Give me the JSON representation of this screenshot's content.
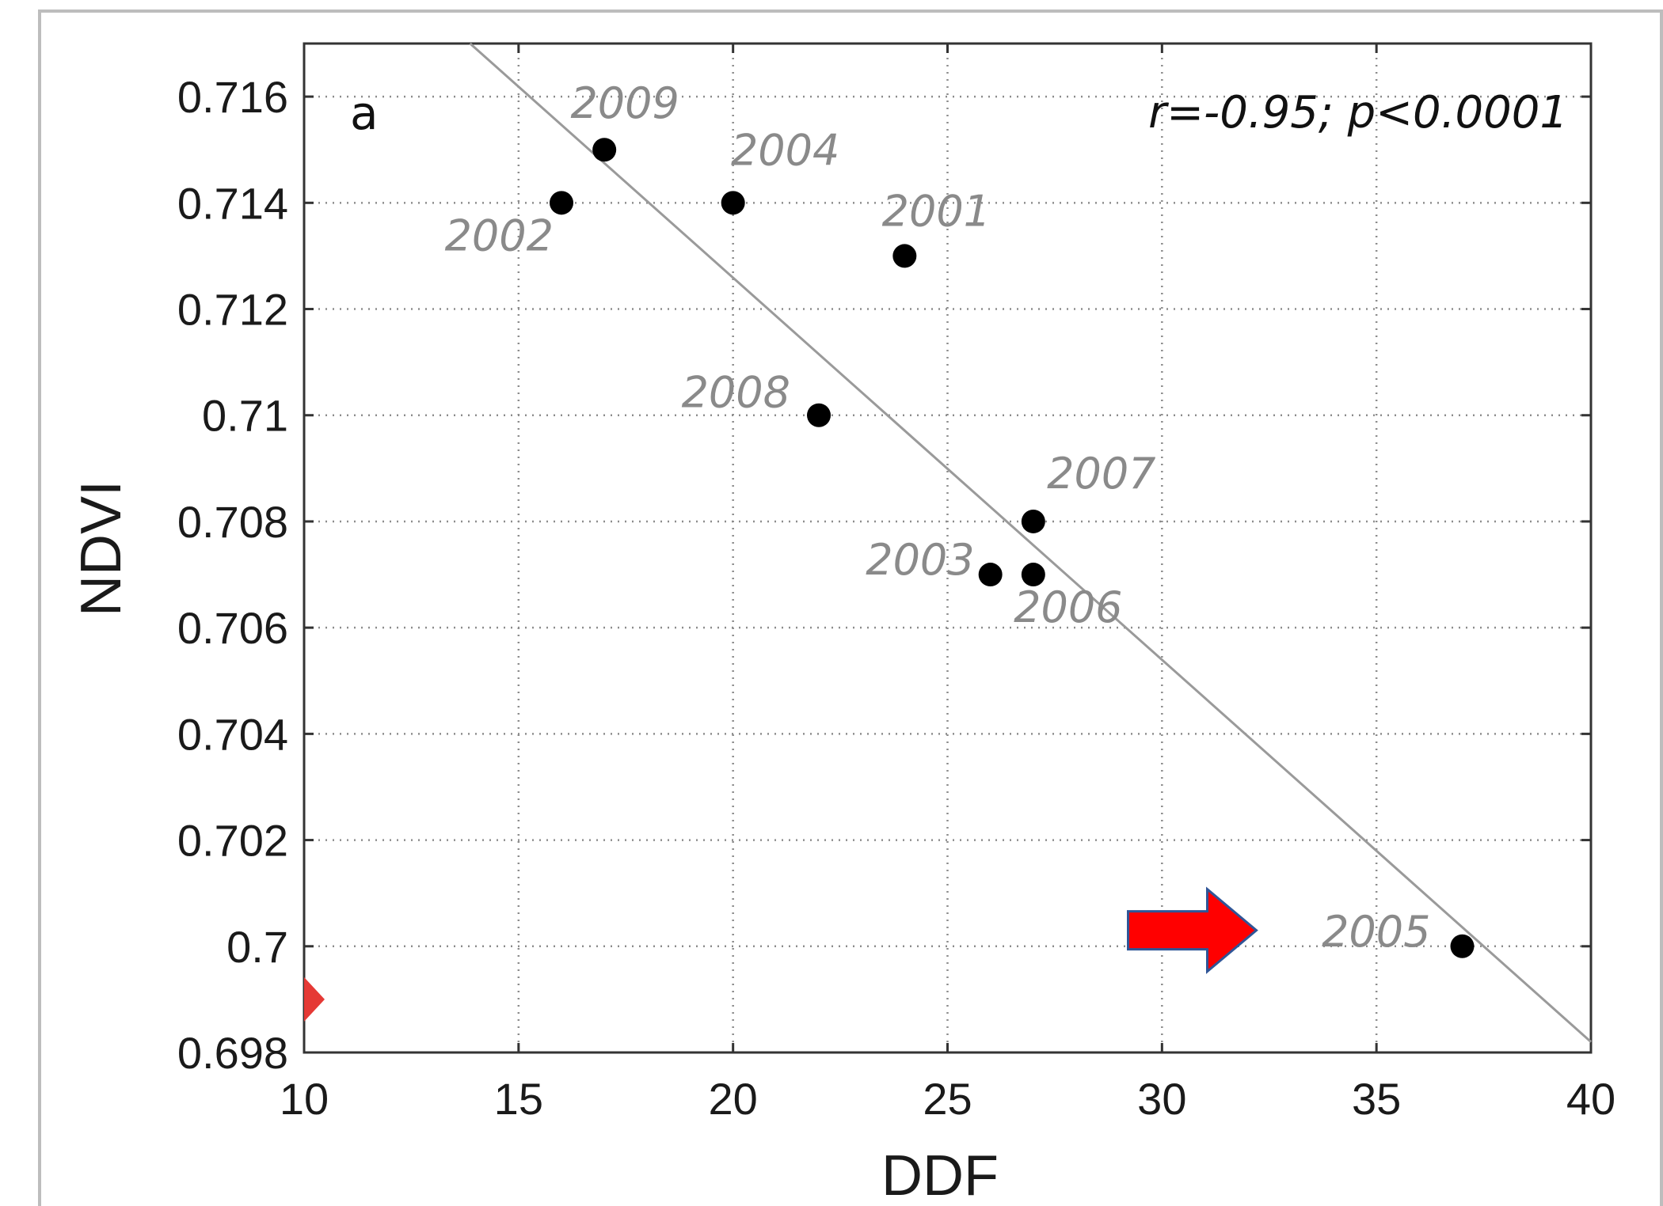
{
  "chart_data": {
    "type": "scatter",
    "panel_label": "a",
    "annotation": "r=-0.95; p<0.0001",
    "xlabel": "DDF",
    "ylabel": "NDVI",
    "xlim": [
      10,
      40
    ],
    "ylim": [
      0.698,
      0.717
    ],
    "xticks": [
      10,
      15,
      20,
      25,
      30,
      35,
      40
    ],
    "xtick_labels": [
      "10",
      "15",
      "20",
      "25",
      "30",
      "35",
      "40"
    ],
    "yticks": [
      0.698,
      0.7,
      0.702,
      0.704,
      0.706,
      0.708,
      0.71,
      0.712,
      0.714,
      0.716
    ],
    "ytick_labels": [
      "0.698",
      "0.7",
      "0.702",
      "0.704",
      "0.706",
      "0.708",
      "0.71",
      "0.712",
      "0.714",
      "0.716"
    ],
    "grid": true,
    "points": [
      {
        "label": "2009",
        "x": 17,
        "y": 0.715
      },
      {
        "label": "2002",
        "x": 16,
        "y": 0.714
      },
      {
        "label": "2004",
        "x": 20,
        "y": 0.714
      },
      {
        "label": "2001",
        "x": 24,
        "y": 0.713
      },
      {
        "label": "2008",
        "x": 22,
        "y": 0.71
      },
      {
        "label": "2007",
        "x": 27,
        "y": 0.708
      },
      {
        "label": "2003",
        "x": 26,
        "y": 0.707
      },
      {
        "label": "2006",
        "x": 27,
        "y": 0.707
      },
      {
        "label": "2005",
        "x": 37,
        "y": 0.7
      }
    ],
    "regression_line": {
      "x": [
        13.87,
        40
      ],
      "y": [
        0.717,
        0.6982
      ]
    },
    "marker_color": "#000000",
    "line_color": "#9a9a9a",
    "label_color": "#8a8a8a",
    "arrow": {
      "x": 32.2,
      "y": 0.7003,
      "color": "#ff0000",
      "outline": "#2f5597"
    },
    "edge_marker": {
      "x": 10,
      "y": 0.699,
      "color": "#e53935"
    }
  }
}
